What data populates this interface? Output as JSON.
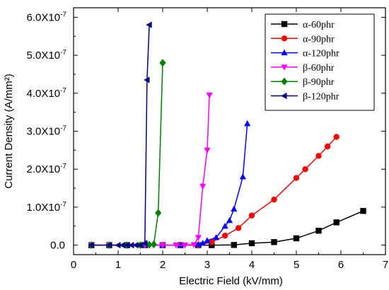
{
  "chart_data": {
    "type": "line",
    "title": "",
    "xlabel": "Electric Field (kV/mm)",
    "ylabel": "Current Density (A/mm²)",
    "xlim": [
      0,
      7
    ],
    "ylim": [
      -2.5e-08,
      6.25e-07
    ],
    "x_ticks": [
      0,
      1,
      2,
      3,
      4,
      5,
      6,
      7
    ],
    "x_tick_labels": [
      "0",
      "1",
      "2",
      "3",
      "4",
      "5",
      "6",
      "7"
    ],
    "y_ticks": [
      0,
      1e-07,
      2e-07,
      3e-07,
      4e-07,
      5e-07,
      6e-07
    ],
    "y_tick_labels": [
      "0.0",
      "1.0X10-7",
      "2.0X10-7",
      "3.0X10-7",
      "4.0X10-7",
      "5.0X10-7",
      "6.0X10-7"
    ],
    "grid": false,
    "legend_position": "top-right",
    "series": [
      {
        "name": "α-60phr",
        "color": "#000000",
        "marker": "square",
        "x": [
          0.4,
          0.8,
          1.2,
          1.6,
          2.0,
          2.4,
          2.8,
          3.1,
          3.6,
          4.0,
          4.5,
          5.0,
          5.5,
          5.9,
          6.5
        ],
        "y": [
          0,
          0,
          0,
          0,
          0,
          0,
          0,
          0,
          5e-10,
          5e-09,
          8e-09,
          1.8e-08,
          3.8e-08,
          6e-08,
          9e-08
        ]
      },
      {
        "name": "α-90phr",
        "color": "#ff0000",
        "marker": "circle",
        "x": [
          0.4,
          0.8,
          1.2,
          1.6,
          2.0,
          2.4,
          2.8,
          3.1,
          3.4,
          3.7,
          4.0,
          4.5,
          5.0,
          5.2,
          5.5,
          5.7,
          5.9
        ],
        "y": [
          0,
          0,
          0,
          0,
          0,
          0,
          0,
          8e-09,
          2.5e-08,
          4.5e-08,
          7.8e-08,
          1.2e-07,
          1.77e-07,
          2e-07,
          2.35e-07,
          2.6e-07,
          2.85e-07
        ]
      },
      {
        "name": "α-120phr",
        "color": "#0000ff",
        "marker": "triangle-up",
        "x": [
          0.4,
          0.8,
          1.2,
          1.6,
          2.0,
          2.4,
          2.8,
          2.9,
          3.0,
          3.2,
          3.4,
          3.5,
          3.6,
          3.8,
          3.9
        ],
        "y": [
          0,
          0,
          0,
          0,
          0,
          0,
          2e-09,
          5e-09,
          1.2e-08,
          2e-08,
          5e-08,
          6.5e-08,
          9.5e-08,
          1.8e-07,
          3.2e-07
        ]
      },
      {
        "name": "β-60phr",
        "color": "#ff00ff",
        "marker": "triangle-down",
        "x": [
          0.4,
          0.8,
          1.2,
          1.6,
          2.0,
          2.3,
          2.5,
          2.7,
          2.8,
          2.9,
          3.0,
          3.05
        ],
        "y": [
          0,
          0,
          0,
          0,
          0,
          0,
          0,
          1e-09,
          2e-08,
          1.55e-07,
          2.5e-07,
          3.95e-07
        ]
      },
      {
        "name": "β-90phr",
        "color": "#008000",
        "marker": "diamond",
        "x": [
          0.4,
          0.8,
          1.2,
          1.5,
          1.7,
          1.8,
          1.9,
          2.0
        ],
        "y": [
          0,
          0,
          0,
          0,
          1e-09,
          2e-09,
          8.5e-08,
          4.8e-07
        ]
      },
      {
        "name": "β-120phr",
        "color": "#000080",
        "marker": "triangle-left",
        "x": [
          0.4,
          0.8,
          1.0,
          1.1,
          1.2,
          1.3,
          1.4,
          1.5,
          1.6,
          1.65,
          1.7
        ],
        "y": [
          0,
          0,
          0,
          0,
          0,
          0,
          0,
          0,
          5e-09,
          4.35e-07,
          5.8e-07
        ]
      }
    ]
  }
}
